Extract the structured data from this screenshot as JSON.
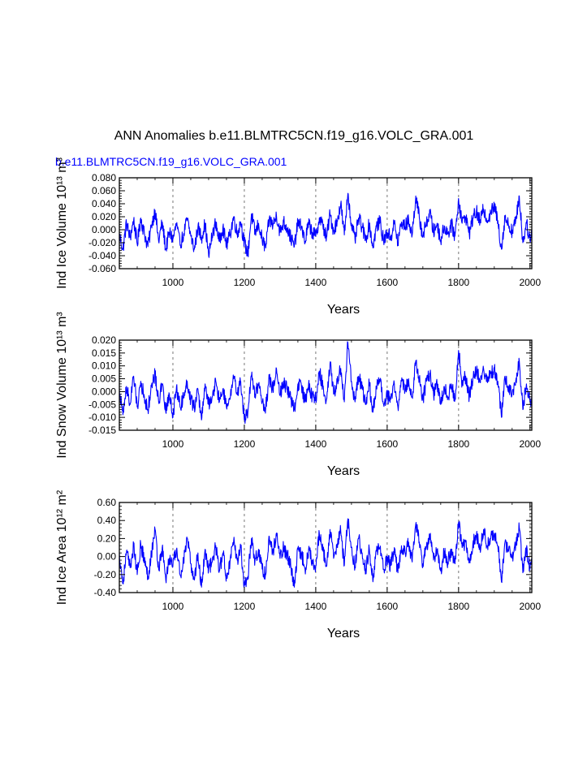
{
  "figure": {
    "title": "ANN Anomalies b.e11.BLMTRC5CN.f19_g16.VOLC_GRA.001",
    "series_label": "b.e11.BLMTRC5CN.f19_g16.VOLC_GRA.001"
  },
  "colors": {
    "line": "#0000ff",
    "axis": "#000000",
    "grid": "#777777",
    "label": "#0000ff"
  },
  "chart_data": [
    {
      "type": "line",
      "id": "ice-volume",
      "ylabel": "Ind Ice Volume 10¹³ m³",
      "xlabel": "Years",
      "xlim": [
        850,
        2005
      ],
      "ylim": [
        -0.06,
        0.08
      ],
      "xticks": [
        1000,
        1200,
        1400,
        1600,
        1800,
        2000
      ],
      "xtick_labels": [
        "1000",
        "1200",
        "1400",
        "1600",
        "1800",
        "2000"
      ],
      "yticks": [
        -0.06,
        -0.04,
        -0.02,
        0.0,
        0.02,
        0.04,
        0.06,
        0.08
      ],
      "ytick_labels": [
        "-0.060",
        "-0.040",
        "-0.020",
        "0.000",
        "0.020",
        "0.040",
        "0.060",
        "0.080"
      ],
      "grid_x": [
        1000,
        1200,
        1400,
        1600,
        1800,
        2000
      ],
      "series": [
        {
          "name": "b.e11.BLMTRC5CN.f19_g16.VOLC_GRA.001",
          "x": [
            850,
            860,
            870,
            880,
            890,
            900,
            910,
            920,
            930,
            940,
            950,
            960,
            970,
            980,
            990,
            1000,
            1010,
            1020,
            1030,
            1040,
            1050,
            1060,
            1070,
            1080,
            1090,
            1100,
            1110,
            1120,
            1130,
            1140,
            1150,
            1160,
            1170,
            1180,
            1190,
            1200,
            1210,
            1220,
            1230,
            1240,
            1250,
            1260,
            1270,
            1280,
            1290,
            1300,
            1310,
            1320,
            1330,
            1340,
            1350,
            1360,
            1370,
            1380,
            1390,
            1400,
            1410,
            1420,
            1430,
            1440,
            1450,
            1460,
            1470,
            1480,
            1490,
            1500,
            1510,
            1520,
            1530,
            1540,
            1550,
            1560,
            1570,
            1580,
            1590,
            1600,
            1610,
            1620,
            1630,
            1640,
            1650,
            1660,
            1670,
            1680,
            1690,
            1700,
            1710,
            1720,
            1730,
            1740,
            1750,
            1760,
            1770,
            1780,
            1790,
            1800,
            1810,
            1820,
            1830,
            1840,
            1850,
            1860,
            1870,
            1880,
            1890,
            1900,
            1910,
            1920,
            1930,
            1940,
            1950,
            1960,
            1970,
            1980,
            1990,
            2000,
            2005
          ],
          "y": [
            -0.008,
            -0.03,
            0.01,
            -0.012,
            0.014,
            -0.022,
            0.018,
            -0.006,
            -0.026,
            0.006,
            0.03,
            -0.018,
            0.012,
            -0.03,
            -0.004,
            -0.014,
            0.008,
            -0.024,
            -0.006,
            0.016,
            -0.01,
            -0.03,
            0.004,
            -0.012,
            0.01,
            -0.04,
            -0.008,
            0.012,
            -0.018,
            0.004,
            -0.024,
            -0.008,
            0.02,
            -0.006,
            0.012,
            -0.02,
            -0.038,
            0.024,
            -0.006,
            0.01,
            -0.016,
            -0.028,
            0.018,
            0.006,
            0.022,
            -0.004,
            0.012,
            0.002,
            -0.012,
            -0.026,
            0.01,
            0.004,
            -0.018,
            0.01,
            -0.004,
            -0.01,
            0.018,
            0.006,
            -0.012,
            0.024,
            -0.002,
            0.014,
            0.04,
            -0.008,
            0.056,
            0.01,
            -0.016,
            0.018,
            0.004,
            -0.016,
            0.01,
            -0.028,
            0.006,
            0.012,
            -0.018,
            -0.004,
            -0.012,
            0.01,
            -0.02,
            0.012,
            0.004,
            0.016,
            -0.008,
            0.052,
            0.018,
            -0.01,
            0.012,
            0.026,
            -0.004,
            0.01,
            -0.018,
            0.006,
            -0.006,
            0.008,
            -0.01,
            0.048,
            0.01,
            0.02,
            -0.006,
            0.018,
            0.028,
            0.012,
            0.032,
            0.014,
            0.026,
            0.036,
            0.014,
            -0.03,
            0.02,
            0.006,
            -0.002,
            0.014,
            0.052,
            -0.02,
            0.01,
            -0.016,
            -0.008
          ]
        }
      ]
    },
    {
      "type": "line",
      "id": "snow-volume",
      "ylabel": "Ind Snow Volume 10¹³ m³",
      "xlabel": "Years",
      "xlim": [
        850,
        2005
      ],
      "ylim": [
        -0.015,
        0.02
      ],
      "xticks": [
        1000,
        1200,
        1400,
        1600,
        1800,
        2000
      ],
      "xtick_labels": [
        "1000",
        "1200",
        "1400",
        "1600",
        "1800",
        "2000"
      ],
      "yticks": [
        -0.015,
        -0.01,
        -0.005,
        0.0,
        0.005,
        0.01,
        0.015,
        0.02
      ],
      "ytick_labels": [
        "-0.015",
        "-0.010",
        "-0.005",
        "0.000",
        "0.005",
        "0.010",
        "0.015",
        "0.020"
      ],
      "grid_x": [
        1000,
        1200,
        1400,
        1600,
        1800,
        2000
      ],
      "series": [
        {
          "name": "b.e11.BLMTRC5CN.f19_g16.VOLC_GRA.001",
          "x": [
            850,
            860,
            870,
            880,
            890,
            900,
            910,
            920,
            930,
            940,
            950,
            960,
            970,
            980,
            990,
            1000,
            1010,
            1020,
            1030,
            1040,
            1050,
            1060,
            1070,
            1080,
            1090,
            1100,
            1110,
            1120,
            1130,
            1140,
            1150,
            1160,
            1170,
            1180,
            1190,
            1200,
            1210,
            1220,
            1230,
            1240,
            1250,
            1260,
            1270,
            1280,
            1290,
            1300,
            1310,
            1320,
            1330,
            1340,
            1350,
            1360,
            1370,
            1380,
            1390,
            1400,
            1410,
            1420,
            1430,
            1440,
            1450,
            1460,
            1470,
            1480,
            1490,
            1500,
            1510,
            1520,
            1530,
            1540,
            1550,
            1560,
            1570,
            1580,
            1590,
            1600,
            1610,
            1620,
            1630,
            1640,
            1650,
            1660,
            1670,
            1680,
            1690,
            1700,
            1710,
            1720,
            1730,
            1740,
            1750,
            1760,
            1770,
            1780,
            1790,
            1800,
            1810,
            1820,
            1830,
            1840,
            1850,
            1860,
            1870,
            1880,
            1890,
            1900,
            1910,
            1920,
            1930,
            1940,
            1950,
            1960,
            1970,
            1980,
            1990,
            2000,
            2005
          ],
          "y": [
            0.001,
            -0.009,
            0.002,
            -0.005,
            0.006,
            -0.006,
            0.004,
            -0.002,
            -0.007,
            0.002,
            0.007,
            -0.004,
            0.003,
            -0.008,
            -0.001,
            -0.01,
            0.002,
            -0.006,
            -0.002,
            0.004,
            -0.003,
            -0.006,
            0.001,
            -0.011,
            0.003,
            -0.005,
            -0.002,
            0.004,
            -0.004,
            0.001,
            -0.006,
            -0.003,
            0.005,
            -0.001,
            0.004,
            -0.011,
            -0.008,
            0.006,
            -0.001,
            0.003,
            -0.004,
            -0.006,
            0.005,
            0.001,
            0.009,
            -0.001,
            0.004,
            0.001,
            -0.003,
            -0.007,
            0.003,
            0.002,
            -0.004,
            0.003,
            -0.002,
            -0.003,
            0.008,
            0.002,
            -0.003,
            0.011,
            -0.001,
            0.004,
            0.009,
            -0.004,
            0.019,
            0.004,
            -0.004,
            0.006,
            0.001,
            -0.005,
            0.003,
            -0.008,
            0.002,
            0.004,
            -0.005,
            -0.002,
            -0.003,
            0.003,
            -0.006,
            0.004,
            0.001,
            0.005,
            -0.002,
            0.012,
            0.005,
            -0.003,
            0.004,
            0.007,
            -0.001,
            0.003,
            -0.005,
            0.002,
            -0.002,
            0.003,
            -0.003,
            0.016,
            0.003,
            0.006,
            -0.002,
            0.005,
            0.008,
            0.004,
            0.009,
            0.004,
            0.007,
            0.009,
            0.004,
            -0.01,
            0.006,
            0.002,
            -0.001,
            0.004,
            0.012,
            -0.007,
            0.003,
            -0.004,
            -0.002
          ]
        }
      ]
    },
    {
      "type": "line",
      "id": "ice-area",
      "ylabel": "Ind Ice Area 10¹² m²",
      "xlabel": "Years",
      "xlim": [
        850,
        2005
      ],
      "ylim": [
        -0.4,
        0.6
      ],
      "xticks": [
        1000,
        1200,
        1400,
        1600,
        1800,
        2000
      ],
      "xtick_labels": [
        "1000",
        "1200",
        "1400",
        "1600",
        "1800",
        "2000"
      ],
      "yticks": [
        -0.4,
        -0.2,
        0.0,
        0.2,
        0.4,
        0.6
      ],
      "ytick_labels": [
        "-0.40",
        "-0.20",
        "0.00",
        "0.20",
        "0.40",
        "0.60"
      ],
      "grid_x": [
        1000,
        1200,
        1400,
        1600,
        1800,
        2000
      ],
      "series": [
        {
          "name": "b.e11.BLMTRC5CN.f19_g16.VOLC_GRA.001",
          "x": [
            850,
            860,
            870,
            880,
            890,
            900,
            910,
            920,
            930,
            940,
            950,
            960,
            970,
            980,
            990,
            1000,
            1010,
            1020,
            1030,
            1040,
            1050,
            1060,
            1070,
            1080,
            1090,
            1100,
            1110,
            1120,
            1130,
            1140,
            1150,
            1160,
            1170,
            1180,
            1190,
            1200,
            1210,
            1220,
            1230,
            1240,
            1250,
            1260,
            1270,
            1280,
            1290,
            1300,
            1310,
            1320,
            1330,
            1340,
            1350,
            1360,
            1370,
            1380,
            1390,
            1400,
            1410,
            1420,
            1430,
            1440,
            1450,
            1460,
            1470,
            1480,
            1490,
            1500,
            1510,
            1520,
            1530,
            1540,
            1550,
            1560,
            1570,
            1580,
            1590,
            1600,
            1610,
            1620,
            1630,
            1640,
            1650,
            1660,
            1670,
            1680,
            1690,
            1700,
            1710,
            1720,
            1730,
            1740,
            1750,
            1760,
            1770,
            1780,
            1790,
            1800,
            1810,
            1820,
            1830,
            1840,
            1850,
            1860,
            1870,
            1880,
            1890,
            1900,
            1910,
            1920,
            1930,
            1940,
            1950,
            1960,
            1970,
            1980,
            1990,
            2000,
            2005
          ],
          "y": [
            0.04,
            -0.3,
            0.05,
            -0.12,
            0.12,
            -0.2,
            0.14,
            -0.04,
            -0.22,
            0.04,
            0.3,
            -0.14,
            0.1,
            -0.26,
            -0.02,
            -0.1,
            0.08,
            -0.2,
            -0.06,
            0.2,
            -0.08,
            -0.26,
            0.04,
            -0.34,
            0.08,
            -0.14,
            -0.06,
            0.12,
            -0.16,
            0.04,
            -0.22,
            -0.06,
            0.16,
            -0.04,
            0.1,
            -0.32,
            -0.22,
            0.2,
            -0.04,
            0.08,
            -0.14,
            -0.2,
            0.22,
            0.04,
            0.26,
            -0.02,
            0.1,
            0.02,
            -0.1,
            -0.34,
            0.08,
            0.04,
            -0.14,
            0.08,
            -0.04,
            -0.1,
            0.26,
            0.06,
            -0.1,
            0.3,
            -0.02,
            0.14,
            0.28,
            -0.1,
            0.42,
            0.1,
            -0.12,
            0.2,
            0.04,
            -0.14,
            0.08,
            -0.28,
            0.06,
            0.1,
            -0.14,
            -0.04,
            -0.1,
            0.1,
            -0.18,
            0.12,
            0.04,
            0.16,
            -0.06,
            0.36,
            0.16,
            -0.08,
            0.12,
            0.22,
            -0.04,
            0.08,
            -0.16,
            0.06,
            -0.06,
            0.08,
            -0.08,
            0.38,
            0.1,
            0.16,
            -0.04,
            0.14,
            0.24,
            0.1,
            0.3,
            0.12,
            0.2,
            0.26,
            0.12,
            -0.28,
            0.16,
            0.06,
            -0.02,
            0.12,
            0.32,
            -0.18,
            0.08,
            -0.14,
            -0.08
          ]
        }
      ]
    }
  ]
}
